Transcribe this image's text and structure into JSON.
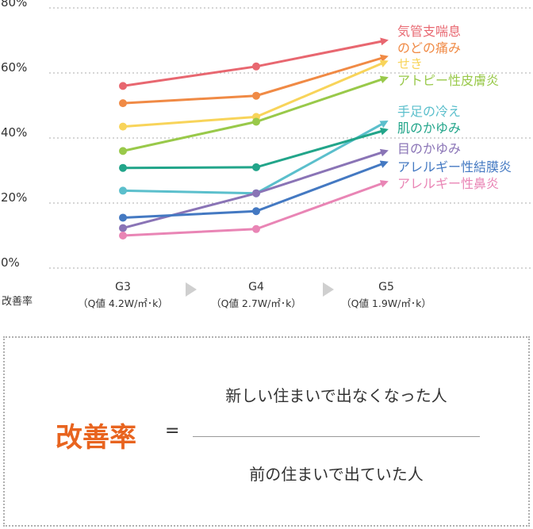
{
  "chart_data": {
    "type": "line",
    "ylabel": "改善率",
    "ylim": [
      0,
      80
    ],
    "yticks": [
      "0%",
      "20%",
      "40%",
      "60%",
      "80%"
    ],
    "ytick_values": [
      0,
      20,
      40,
      60,
      80
    ],
    "grid": true,
    "categories": [
      "G3",
      "G4",
      "G5"
    ],
    "category_subtitles": [
      "（Q値 4.2W/㎡･k）",
      "（Q値 2.7W/㎡･k）",
      "（Q値 1.9W/㎡･k）"
    ],
    "series": [
      {
        "name": "気管支喘息",
        "color": "#e86770",
        "values": [
          56,
          62,
          70
        ]
      },
      {
        "name": "のどの痛み",
        "color": "#f08a45",
        "values": [
          50.7,
          53,
          65
        ]
      },
      {
        "name": "せき",
        "color": "#f8d45a",
        "values": [
          43.5,
          46.5,
          63.5
        ]
      },
      {
        "name": "アトピー性皮膚炎",
        "color": "#99c94a",
        "values": [
          36,
          45,
          58.5
        ]
      },
      {
        "name": "手足の冷え",
        "color": "#5bbfcc",
        "values": [
          23.8,
          23,
          45
        ]
      },
      {
        "name": "肌のかゆみ",
        "color": "#22a58a",
        "values": [
          30.8,
          31,
          42.5
        ]
      },
      {
        "name": "目のかゆみ",
        "color": "#8a74b6",
        "values": [
          12.3,
          23,
          36
        ]
      },
      {
        "name": "アレルギー性結膜炎",
        "color": "#4479c2",
        "values": [
          15.5,
          17.5,
          32.5
        ]
      },
      {
        "name": "アレルギー性鼻炎",
        "color": "#e985b5",
        "values": [
          10,
          12,
          26.5
        ]
      }
    ]
  },
  "formula": {
    "term": "改善率",
    "equals": "=",
    "numerator": "新しい住まいで出なくなった人",
    "denominator": "前の住まいで出ていた人"
  },
  "colors": {
    "accent": "#e8641f",
    "grid": "#bdbdbd",
    "arrow": "#cfcfcf"
  }
}
